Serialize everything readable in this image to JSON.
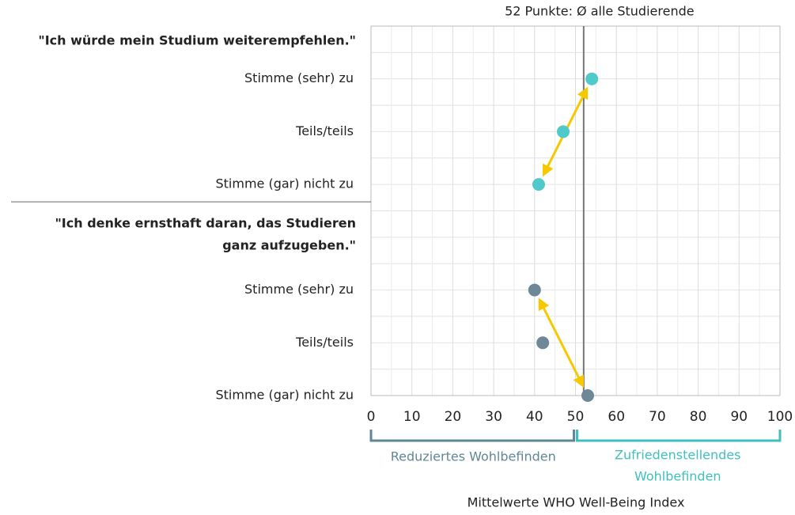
{
  "chart_data": {
    "type": "dot",
    "xlabel": "Mittelwerte WHO Well-Being Index",
    "xlim": [
      0,
      100
    ],
    "xticks": [
      0,
      10,
      20,
      30,
      40,
      50,
      60,
      70,
      80,
      90,
      100
    ],
    "grid": true,
    "reference": {
      "value": 52,
      "label": "52 Punkte: Ø alle Studierende"
    },
    "groups": [
      {
        "title": [
          "\"Ich würde mein Studium weiterempfehlen.\""
        ],
        "categories": [
          "Stimme (sehr) zu",
          "Teils/teils",
          "Stimme (gar) nicht zu"
        ],
        "values": [
          54,
          47,
          41
        ],
        "color": "#4fc9c9"
      },
      {
        "title": [
          "\"Ich denke ernsthaft daran, das Studieren",
          "ganz aufzugeben.\""
        ],
        "categories": [
          "Stimme (sehr) zu",
          "Teils/teils",
          "Stimme (gar) nicht zu"
        ],
        "values": [
          40,
          42,
          53
        ],
        "color": "#6e8898"
      }
    ],
    "bands": [
      {
        "label": [
          "Reduziertes Wohlbefinden"
        ],
        "range": [
          0,
          50
        ],
        "color": "#5f8797"
      },
      {
        "label": [
          "Zufriedenstellendes",
          "Wohlbefinden"
        ],
        "range": [
          50,
          100
        ],
        "color": "#3fbfbf"
      }
    ]
  }
}
